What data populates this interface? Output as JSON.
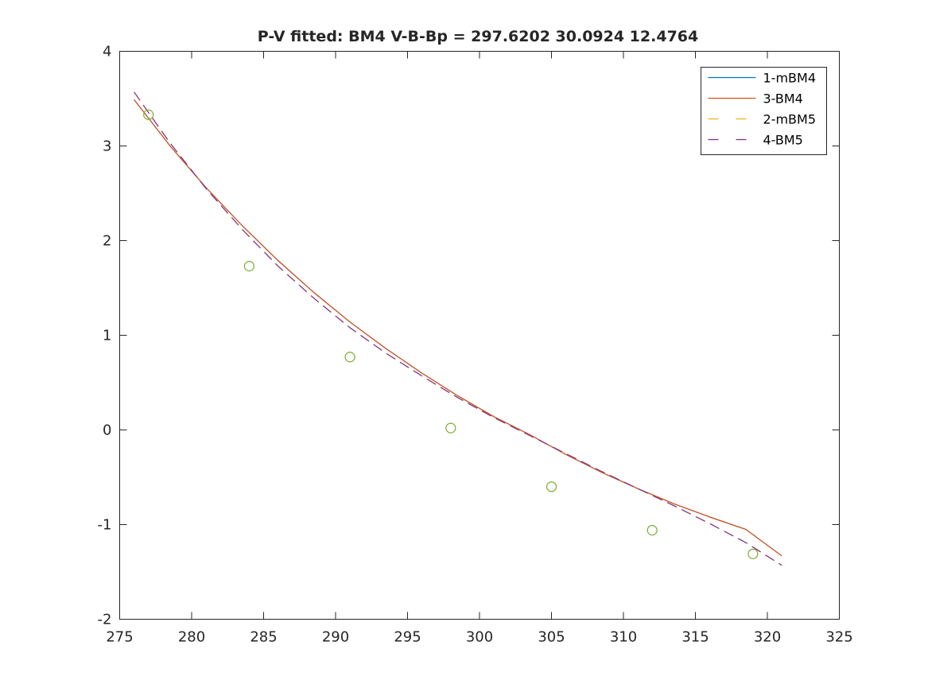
{
  "chart_data": {
    "type": "line",
    "title": "P-V fitted: BM4 V-B-Bp =  297.6202   30.0924   12.4764",
    "xlabel": "",
    "ylabel": "",
    "xlim": [
      275,
      325
    ],
    "ylim": [
      -2,
      4
    ],
    "xticks": [
      275,
      280,
      285,
      290,
      295,
      300,
      305,
      310,
      315,
      320,
      325
    ],
    "yticks": [
      -2,
      -1,
      0,
      1,
      2,
      3,
      4
    ],
    "grid": false,
    "legend_position": "top-right",
    "series": [
      {
        "name": "1-mBM4",
        "style": "solid",
        "color": "#0072BD",
        "x": [
          276,
          278.5,
          281,
          283.5,
          286,
          288.5,
          291,
          293.5,
          296,
          298.5,
          301,
          303.5,
          306,
          308.5,
          311,
          313.5,
          316,
          318.5,
          321
        ],
        "y": [
          3.49,
          3.0,
          2.56,
          2.16,
          1.79,
          1.45,
          1.14,
          0.86,
          0.6,
          0.36,
          0.14,
          -0.05,
          -0.26,
          -0.45,
          -0.62,
          -0.78,
          -0.92,
          -1.05,
          -1.33
        ]
      },
      {
        "name": "3-BM4",
        "style": "solid",
        "color": "#D95319",
        "x": [
          276,
          278.5,
          281,
          283.5,
          286,
          288.5,
          291,
          293.5,
          296,
          298.5,
          301,
          303.5,
          306,
          308.5,
          311,
          313.5,
          316,
          318.5,
          321
        ],
        "y": [
          3.49,
          3.0,
          2.56,
          2.16,
          1.79,
          1.45,
          1.14,
          0.86,
          0.6,
          0.36,
          0.14,
          -0.05,
          -0.26,
          -0.45,
          -0.62,
          -0.78,
          -0.92,
          -1.05,
          -1.33
        ]
      },
      {
        "name": "2-mBM5",
        "style": "dashed",
        "color": "#EDB120",
        "x": [
          276,
          278.5,
          281,
          283.5,
          286,
          288.5,
          291,
          293.5,
          296,
          298.5,
          301,
          303.5,
          306,
          308.5,
          311,
          313.5,
          316,
          318.5,
          321
        ],
        "y": [
          3.57,
          3.03,
          2.55,
          2.12,
          1.73,
          1.39,
          1.08,
          0.81,
          0.57,
          0.34,
          0.13,
          -0.06,
          -0.25,
          -0.44,
          -0.62,
          -0.8,
          -0.99,
          -1.19,
          -1.43
        ]
      },
      {
        "name": "4-BM5",
        "style": "dashed",
        "color": "#7E2F8E",
        "x": [
          276,
          278.5,
          281,
          283.5,
          286,
          288.5,
          291,
          293.5,
          296,
          298.5,
          301,
          303.5,
          306,
          308.5,
          311,
          313.5,
          316,
          318.5,
          321
        ],
        "y": [
          3.57,
          3.03,
          2.55,
          2.12,
          1.73,
          1.39,
          1.08,
          0.81,
          0.57,
          0.34,
          0.13,
          -0.06,
          -0.25,
          -0.44,
          -0.62,
          -0.8,
          -0.99,
          -1.19,
          -1.43
        ]
      },
      {
        "name": "",
        "style": "markers",
        "marker": "circle",
        "color": "#77AC30",
        "x": [
          277,
          284,
          291,
          298,
          305,
          312,
          319
        ],
        "y": [
          3.33,
          1.73,
          0.77,
          0.02,
          -0.6,
          -1.06,
          -1.31
        ]
      }
    ]
  }
}
